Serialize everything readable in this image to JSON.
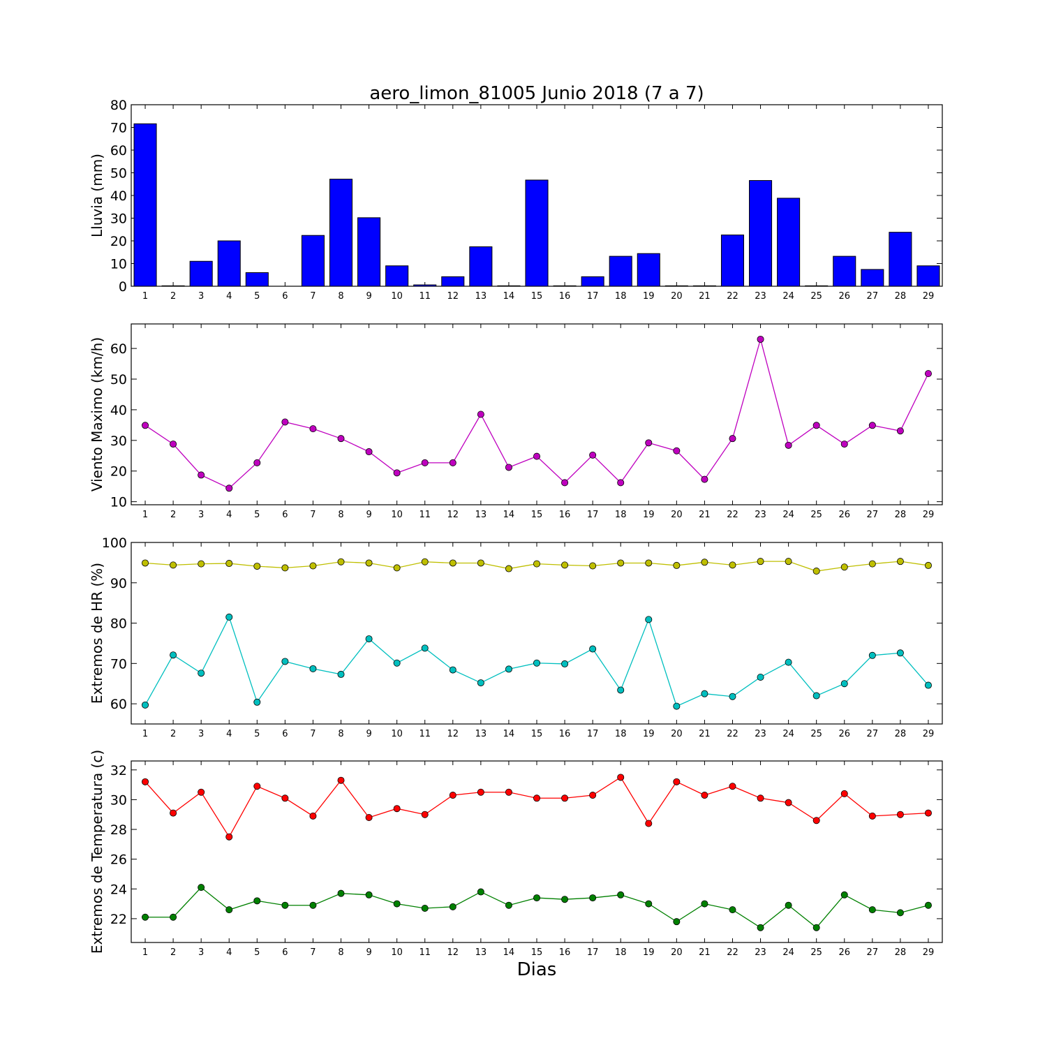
{
  "title": "aero_limon_81005 Junio 2018  (7 a 7)",
  "xlabel": "Dias",
  "chart_data": [
    {
      "type": "bar",
      "ylabel": "Lluvia (mm)",
      "ylim": [
        0,
        80
      ],
      "yticks": [
        0,
        10,
        20,
        30,
        40,
        50,
        60,
        70,
        80
      ],
      "categories": [
        "1",
        "2",
        "3",
        "4",
        "5",
        "6",
        "7",
        "8",
        "9",
        "10",
        "11",
        "12",
        "13",
        "14",
        "15",
        "16",
        "17",
        "18",
        "19",
        "20",
        "21",
        "22",
        "23",
        "24",
        "25",
        "26",
        "27",
        "28",
        "29"
      ],
      "series": [
        {
          "color": "#0000ff",
          "values": [
            71.6,
            0.2,
            11.0,
            20.0,
            6.0,
            0,
            22.4,
            47.2,
            30.2,
            9.0,
            0.6,
            4.2,
            17.4,
            0.2,
            46.8,
            0.2,
            4.2,
            13.2,
            14.4,
            0.2,
            0.2,
            22.6,
            46.6,
            38.8,
            0.2,
            13.2,
            7.4,
            23.8,
            9.0
          ]
        }
      ],
      "grid": false
    },
    {
      "type": "line",
      "ylabel": "Viento Maximo (km/h)",
      "ylim": [
        9,
        68
      ],
      "yticks": [
        10,
        20,
        30,
        40,
        50,
        60
      ],
      "x": [
        "1",
        "2",
        "3",
        "4",
        "5",
        "6",
        "7",
        "8",
        "9",
        "10",
        "11",
        "12",
        "13",
        "14",
        "15",
        "16",
        "17",
        "18",
        "19",
        "20",
        "21",
        "22",
        "23",
        "24",
        "25",
        "26",
        "27",
        "28",
        "29"
      ],
      "series": [
        {
          "color": "#bf00bf",
          "values": [
            34.9,
            28.8,
            18.7,
            14.4,
            22.7,
            36.0,
            33.8,
            30.6,
            26.3,
            19.4,
            22.7,
            22.7,
            38.5,
            21.2,
            24.8,
            16.2,
            25.2,
            16.2,
            29.2,
            26.6,
            17.3,
            30.6,
            63.0,
            28.4,
            34.9,
            28.8,
            34.9,
            33.1,
            51.8
          ]
        }
      ],
      "grid": false
    },
    {
      "type": "line",
      "ylabel": "Extremos de HR (%)",
      "ylim": [
        55,
        100
      ],
      "yticks": [
        60,
        70,
        80,
        90,
        100
      ],
      "x": [
        "1",
        "2",
        "3",
        "4",
        "5",
        "6",
        "7",
        "8",
        "9",
        "10",
        "11",
        "12",
        "13",
        "14",
        "15",
        "16",
        "17",
        "18",
        "19",
        "20",
        "21",
        "22",
        "23",
        "24",
        "25",
        "26",
        "27",
        "28",
        "29"
      ],
      "series": [
        {
          "color": "#bfbf00",
          "values": [
            94.9,
            94.4,
            94.7,
            94.8,
            94.1,
            93.7,
            94.2,
            95.2,
            94.9,
            93.7,
            95.2,
            94.9,
            94.9,
            93.5,
            94.7,
            94.4,
            94.2,
            94.9,
            94.9,
            94.3,
            95.1,
            94.4,
            95.3,
            95.3,
            92.9,
            93.9,
            94.7,
            95.3,
            94.3
          ]
        },
        {
          "color": "#00bfbf",
          "values": [
            59.7,
            72.1,
            67.6,
            81.5,
            60.4,
            70.5,
            68.7,
            67.3,
            76.1,
            70.1,
            73.8,
            68.4,
            65.2,
            68.6,
            70.1,
            69.9,
            73.6,
            63.4,
            80.9,
            59.4,
            62.5,
            61.8,
            66.6,
            70.3,
            62.0,
            65.0,
            72.0,
            72.6,
            64.6
          ]
        }
      ],
      "grid": false
    },
    {
      "type": "line",
      "ylabel": "Extremos de Temperatura (c)",
      "ylim": [
        20.4,
        32.6
      ],
      "yticks": [
        22,
        24,
        26,
        28,
        30,
        32
      ],
      "x": [
        "1",
        "2",
        "3",
        "4",
        "5",
        "6",
        "7",
        "8",
        "9",
        "10",
        "11",
        "12",
        "13",
        "14",
        "15",
        "16",
        "17",
        "18",
        "19",
        "20",
        "21",
        "22",
        "23",
        "24",
        "25",
        "26",
        "27",
        "28",
        "29"
      ],
      "series": [
        {
          "color": "#ff0000",
          "values": [
            31.2,
            29.1,
            30.5,
            27.5,
            30.9,
            30.1,
            28.9,
            31.3,
            28.8,
            29.4,
            29.0,
            30.3,
            30.5,
            30.5,
            30.1,
            30.1,
            30.3,
            31.5,
            28.4,
            31.2,
            30.3,
            30.9,
            30.1,
            29.8,
            28.6,
            30.4,
            28.9,
            29.0,
            29.1
          ]
        },
        {
          "color": "#008000",
          "values": [
            22.1,
            22.1,
            24.1,
            22.6,
            23.2,
            22.9,
            22.9,
            23.7,
            23.6,
            23.0,
            22.7,
            22.8,
            23.8,
            22.9,
            23.4,
            23.3,
            23.4,
            23.6,
            23.0,
            21.8,
            23.0,
            22.6,
            21.4,
            22.9,
            21.4,
            23.6,
            22.6,
            22.4,
            22.9
          ]
        }
      ],
      "grid": false
    }
  ]
}
